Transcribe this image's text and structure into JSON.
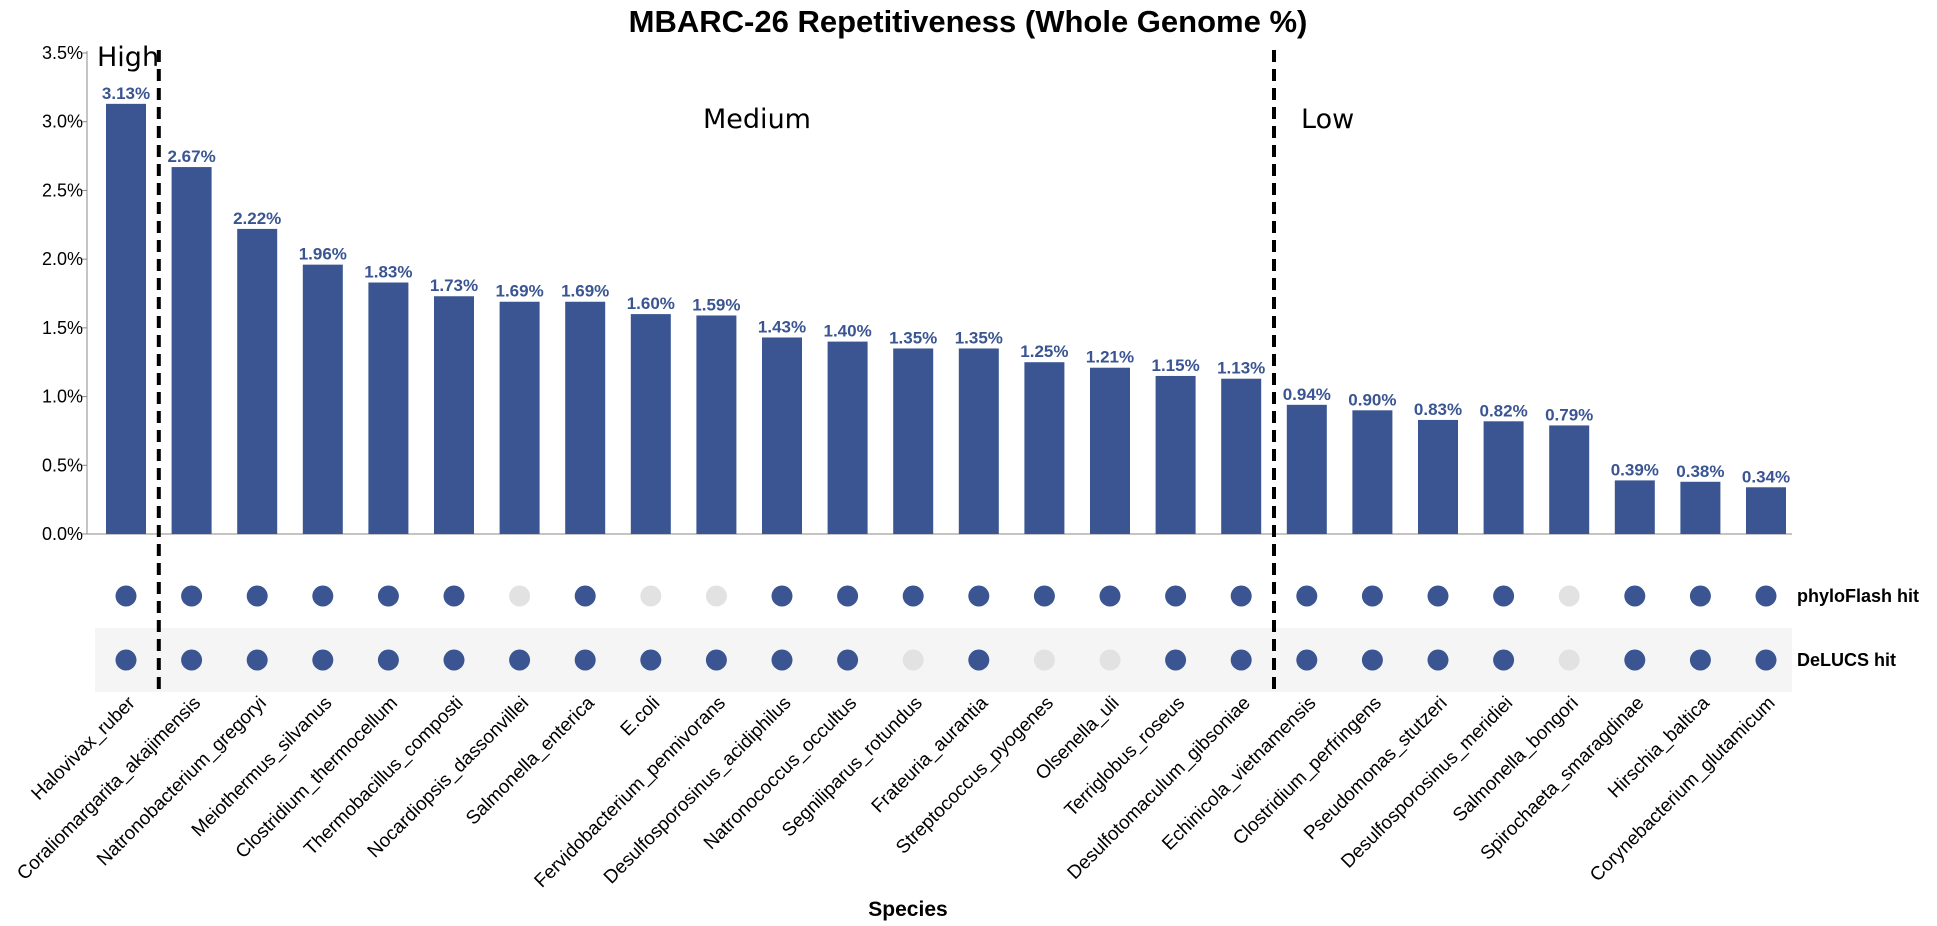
{
  "chart_data": {
    "type": "bar",
    "title": "MBARC-26 Repetitiveness (Whole Genome %)",
    "xlabel": "Species",
    "ylabel": "",
    "ylim": [
      0,
      3.5
    ],
    "yticks": [
      "0.0%",
      "0.5%",
      "1.0%",
      "1.5%",
      "2.0%",
      "2.5%",
      "3.0%",
      "3.5%"
    ],
    "ytick_values": [
      0,
      0.5,
      1.0,
      1.5,
      2.0,
      2.5,
      3.0,
      3.5
    ],
    "color": "#3a5592",
    "categories": [
      "Halovivax_ruber",
      "Coraliomargarita_akajimensis",
      "Natronobacterium_gregoryi",
      "Meiothermus_silvanus",
      "Clostridium_thermocellum",
      "Thermobacillus_composti",
      "Nocardiopsis_dassonvillei",
      "Salmonella_enterica",
      "E.coli",
      "Fervidobacterium_pennivorans",
      "Desulfosporosinus_acidiphilus",
      "Natronococcus_occultus",
      "Segniliparus_rotundus",
      "Frateuria_aurantia",
      "Streptococcus_pyogenes",
      "Olsenella_uli",
      "Terriglobus_roseus",
      "Desulfotomaculum_gibsoniae",
      "Echinicola_vietnamensis",
      "Clostridium_perfringens",
      "Pseudomonas_stutzeri",
      "Desulfosporosinus_meridiei",
      "Salmonella_bongori",
      "Spirochaeta_smaragdinae",
      "Hirschia_baltica",
      "Corynebacterium_glutamicum"
    ],
    "values": [
      3.13,
      2.67,
      2.22,
      1.96,
      1.83,
      1.73,
      1.69,
      1.69,
      1.6,
      1.59,
      1.43,
      1.4,
      1.35,
      1.35,
      1.25,
      1.21,
      1.15,
      1.13,
      0.94,
      0.9,
      0.83,
      0.82,
      0.79,
      0.39,
      0.38,
      0.34
    ],
    "data_labels": [
      "3.13%",
      "2.67%",
      "2.22%",
      "1.96%",
      "1.83%",
      "1.73%",
      "1.69%",
      "1.69%",
      "1.60%",
      "1.59%",
      "1.43%",
      "1.40%",
      "1.35%",
      "1.35%",
      "1.25%",
      "1.21%",
      "1.15%",
      "1.13%",
      "0.94%",
      "0.90%",
      "0.83%",
      "0.82%",
      "0.79%",
      "0.39%",
      "0.38%",
      "0.34%"
    ],
    "regions": [
      {
        "label": "High",
        "boundary_after_index": 0
      },
      {
        "label": "Medium",
        "boundary_after_index": 17
      },
      {
        "label": "Low"
      }
    ],
    "hit_rows": [
      {
        "name": "phyloFlash hit",
        "hits": [
          true,
          true,
          true,
          true,
          true,
          true,
          false,
          true,
          false,
          false,
          true,
          true,
          true,
          true,
          true,
          true,
          true,
          true,
          true,
          true,
          true,
          true,
          false,
          true,
          true,
          true
        ]
      },
      {
        "name": "DeLUCS hit",
        "hits": [
          true,
          true,
          true,
          true,
          true,
          true,
          true,
          true,
          true,
          true,
          true,
          true,
          false,
          true,
          false,
          false,
          true,
          true,
          true,
          true,
          true,
          true,
          false,
          true,
          true,
          true
        ]
      }
    ],
    "hit_color": "#3a5592",
    "miss_color": "#e2e2e2",
    "grid": false,
    "legend": "none"
  }
}
